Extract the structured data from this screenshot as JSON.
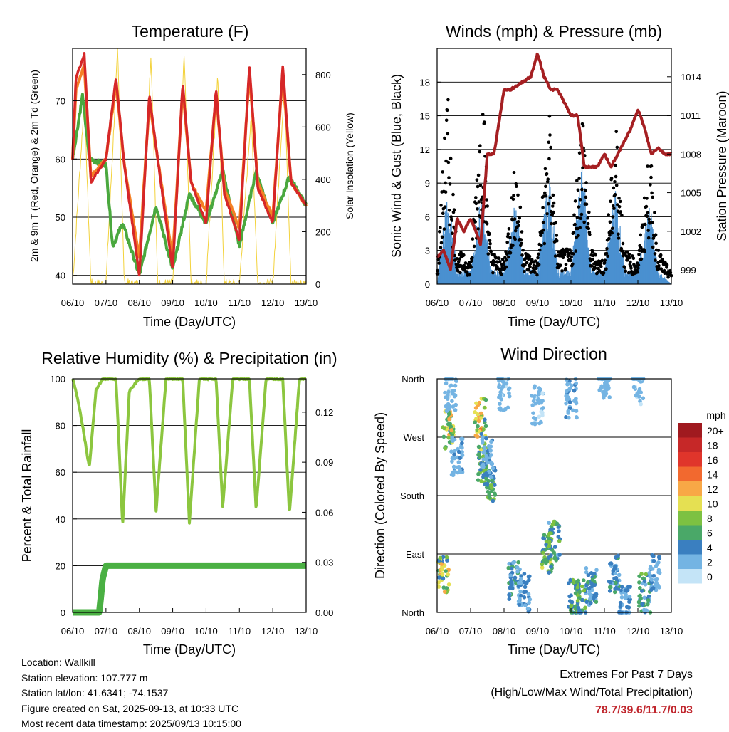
{
  "x_ticks": [
    "06/10",
    "07/10",
    "08/10",
    "09/10",
    "10/10",
    "11/10",
    "12/10",
    "13/10"
  ],
  "time_axis_label": "Time (Day/UTC)",
  "panels": {
    "temperature": {
      "title": "Temperature (F)",
      "ylabel_left": "2m & 9m T (Red, Orange) & 2m Td (Green)",
      "ylabel_right": "Solar Insolation (Yellow)",
      "left_ticks": [
        40,
        50,
        60,
        70
      ],
      "right_ticks": [
        0,
        200,
        400,
        600,
        800
      ]
    },
    "winds": {
      "title": "Winds (mph) & Pressure (mb)",
      "ylabel_left": "Sonic Wind & Gust (Blue, Black)",
      "ylabel_right": "Station Pressure (Maroon)",
      "left_ticks": [
        0,
        3,
        6,
        9,
        12,
        15,
        18
      ],
      "right_ticks": [
        999,
        1002,
        1005,
        1008,
        1011,
        1014
      ]
    },
    "humidity": {
      "title": "Relative Humidity (%) & Precipitation (in)",
      "ylabel_left": "Percent & Total Rainfall",
      "left_ticks": [
        0,
        20,
        40,
        60,
        80,
        100
      ],
      "right_ticks": [
        "0.00",
        "0.03",
        "0.06",
        "0.09",
        "0.12"
      ]
    },
    "direction": {
      "title": "Wind Direction",
      "ylabel_left": "Direction (Colored By Speed)",
      "dir_ticks": [
        "North",
        "East",
        "South",
        "West",
        "North"
      ],
      "legend_title": "mph",
      "legend_labels": [
        "20+",
        "18",
        "16",
        "14",
        "12",
        "10",
        "8",
        "6",
        "4",
        "2",
        "0"
      ],
      "legend_colors": [
        "#a01a1f",
        "#c62828",
        "#e0352b",
        "#f2692f",
        "#f8a846",
        "#e5e052",
        "#7dc142",
        "#4aa868",
        "#3a7fc0",
        "#74b4e3",
        "#c4e4f7"
      ]
    }
  },
  "chart_data": [
    {
      "type": "line",
      "title": "Temperature (F)",
      "xlabel": "Time (Day/UTC)",
      "x_categories": [
        "06/10",
        "07/10",
        "08/10",
        "09/10",
        "10/10",
        "11/10",
        "12/10",
        "13/10"
      ],
      "ylim": [
        38.5,
        79
      ],
      "y2lim": [
        0,
        900
      ],
      "series": [
        {
          "name": "2m T",
          "color": "#d62728",
          "x": [
            0,
            0.1,
            0.35,
            0.55,
            1,
            1.3,
            1.55,
            2,
            2.3,
            2.55,
            3,
            3.3,
            3.55,
            4,
            4.3,
            4.55,
            5,
            5.3,
            5.55,
            6,
            6.3,
            6.55,
            7
          ],
          "y": [
            60,
            74,
            78,
            56,
            60,
            74,
            59,
            40,
            71,
            60,
            41,
            73,
            56,
            49,
            72,
            54,
            46,
            76,
            55,
            49,
            76,
            56,
            52
          ]
        },
        {
          "name": "9m T",
          "color": "#f58025",
          "x": [
            0,
            0.1,
            0.35,
            0.55,
            1,
            1.3,
            1.55,
            2,
            2.3,
            2.55,
            3,
            3.3,
            3.55,
            4,
            4.3,
            4.55,
            5,
            5.3,
            5.55,
            6,
            6.3,
            6.55,
            7
          ],
          "y": [
            60,
            72,
            76,
            57,
            60,
            73,
            59,
            43,
            70,
            60,
            43,
            72,
            56,
            51,
            71,
            55,
            48,
            75,
            56,
            50,
            75,
            56,
            52
          ]
        },
        {
          "name": "2m Td",
          "color": "#4aa83e",
          "x": [
            0,
            0.3,
            0.5,
            1,
            1.2,
            1.5,
            2,
            2.5,
            3,
            3.5,
            4,
            4.5,
            5,
            5.5,
            6,
            6.5,
            7
          ],
          "y": [
            60,
            71,
            60,
            59,
            45,
            49,
            40,
            52,
            41,
            54,
            49,
            58,
            45,
            58,
            49,
            57,
            52
          ]
        },
        {
          "name": "Solar Insolation",
          "color": "#f3d23b",
          "axis": "right",
          "x": [
            0,
            0.35,
            0.55,
            1,
            1.35,
            1.55,
            2,
            2.35,
            2.55,
            3,
            3.35,
            3.55,
            4,
            4.35,
            4.55,
            5,
            5.35,
            5.55,
            6,
            6.35,
            6.55,
            7
          ],
          "y": [
            0,
            700,
            0,
            0,
            890,
            0,
            0,
            880,
            0,
            0,
            880,
            0,
            0,
            800,
            0,
            0,
            650,
            0,
            0,
            770,
            0,
            0
          ]
        }
      ]
    },
    {
      "type": "line",
      "title": "Winds (mph) & Pressure (mb)",
      "xlabel": "Time (Day/UTC)",
      "x_categories": [
        "06/10",
        "07/10",
        "08/10",
        "09/10",
        "10/10",
        "11/10",
        "12/10",
        "13/10"
      ],
      "ylim": [
        0,
        21
      ],
      "y2lim": [
        997.9,
        1016.2
      ],
      "series": [
        {
          "name": "Sonic Wind",
          "color": "#4a90d0",
          "x": [
            0,
            0.3,
            0.6,
            1,
            1.35,
            1.6,
            2,
            2.35,
            2.6,
            3,
            3.35,
            3.6,
            4,
            4.35,
            4.6,
            5,
            5.35,
            5.6,
            6,
            6.35,
            6.6,
            7
          ],
          "y": [
            0,
            7,
            1,
            1,
            7,
            1,
            1,
            6,
            1,
            1,
            8,
            1,
            1,
            9,
            1,
            1,
            7,
            1,
            1,
            6,
            1,
            0
          ]
        },
        {
          "name": "Gust",
          "color": "#000000",
          "x": [
            0,
            0.3,
            0.6,
            1,
            1.35,
            1.6,
            2,
            2.35,
            2.6,
            3,
            3.35,
            3.6,
            4,
            4.35,
            4.6,
            5,
            5.35,
            5.6,
            6,
            6.35,
            6.6,
            7
          ],
          "y": [
            1,
            17,
            3,
            2,
            18,
            3,
            2,
            11,
            3,
            2,
            15,
            3,
            3,
            16,
            3,
            2,
            14,
            3,
            2,
            12,
            3,
            1
          ]
        },
        {
          "name": "Station Pressure",
          "color": "#a51f22",
          "axis": "right",
          "x": [
            0,
            0.2,
            0.4,
            0.6,
            0.8,
            1,
            1.3,
            1.5,
            1.7,
            2,
            2.2,
            2.5,
            2.8,
            3,
            3.2,
            3.4,
            3.6,
            3.8,
            4,
            4.2,
            4.4,
            4.6,
            4.8,
            5,
            5.2,
            5.4,
            5.6,
            5.8,
            6,
            6.2,
            6.4,
            6.6,
            6.8,
            7
          ],
          "y": [
            1000,
            1000.5,
            999,
            1003,
            1002,
            1003,
            1001,
            1008,
            1008,
            1013,
            1013,
            1013.5,
            1014,
            1015.8,
            1014,
            1013,
            1013,
            1012,
            1011,
            1011,
            1007,
            1007,
            1007,
            1008,
            1007,
            1008,
            1009,
            1010,
            1011.5,
            1010,
            1008,
            1008.5,
            1008,
            1008
          ]
        }
      ]
    },
    {
      "type": "line",
      "title": "Relative Humidity (%) & Precipitation (in)",
      "xlabel": "Time (Day/UTC)",
      "x_categories": [
        "06/10",
        "07/10",
        "08/10",
        "09/10",
        "10/10",
        "11/10",
        "12/10",
        "13/10"
      ],
      "ylim": [
        0,
        100
      ],
      "y2lim": [
        0,
        0.14
      ],
      "series": [
        {
          "name": "Relative Humidity",
          "color": "#8cc63f",
          "x": [
            0,
            0.1,
            0.3,
            0.5,
            0.7,
            0.9,
            1.3,
            1.5,
            1.7,
            2,
            2.3,
            2.5,
            2.8,
            3,
            3.3,
            3.5,
            3.8,
            4,
            4.3,
            4.5,
            4.8,
            5,
            5.3,
            5.5,
            5.8,
            6,
            6.3,
            6.5,
            6.8,
            7
          ],
          "y": [
            100,
            95,
            80,
            62,
            95,
            100,
            100,
            37,
            95,
            100,
            100,
            43,
            100,
            100,
            100,
            38,
            100,
            100,
            100,
            45,
            100,
            100,
            100,
            44,
            100,
            100,
            100,
            42,
            100,
            100
          ]
        },
        {
          "name": "Total Rainfall",
          "color": "#4ab043",
          "axis": "right",
          "x": [
            0,
            0.8,
            0.9,
            1,
            7
          ],
          "y": [
            0,
            0,
            0.02,
            0.028,
            0.028
          ]
        }
      ]
    },
    {
      "type": "scatter",
      "title": "Wind Direction",
      "xlabel": "Time (Day/UTC)",
      "x_categories": [
        "06/10",
        "07/10",
        "08/10",
        "09/10",
        "10/10",
        "11/10",
        "12/10",
        "13/10"
      ],
      "y_categories": [
        "North",
        "East",
        "South",
        "West",
        "North"
      ],
      "ylim": [
        0,
        360
      ],
      "color_scale": {
        "title": "mph",
        "labels": [
          "0",
          "2",
          "4",
          "6",
          "8",
          "10",
          "12",
          "14",
          "16",
          "18",
          "20+"
        ]
      },
      "series": [
        {
          "name": "Direction",
          "x": [
            0.2,
            0.35,
            1.3,
            1.4,
            1.6,
            2.3,
            2.6,
            3.3,
            3.5,
            4.1,
            4.3,
            4.6,
            5.3,
            5.6,
            6.2,
            6.5,
            0.4,
            0.6,
            1.5,
            2.0,
            3.0,
            4.0,
            5.0,
            6.0
          ],
          "y": [
            60,
            280,
            300,
            230,
            200,
            50,
            30,
            90,
            110,
            20,
            20,
            40,
            60,
            10,
            30,
            60,
            340,
            240,
            240,
            340,
            320,
            330,
            360,
            350
          ],
          "speed": [
            10,
            11,
            11,
            8,
            7,
            5,
            4,
            8,
            7,
            8,
            7,
            5,
            5,
            4,
            6,
            3,
            2,
            3,
            3,
            2,
            2,
            3,
            2,
            2
          ]
        }
      ]
    }
  ],
  "info": {
    "location": "Location: Wallkill",
    "elevation": "Station elevation: 107.777 m",
    "latlon": "Station lat/lon: 41.6341; -74.1537",
    "created": "Figure created on Sat, 2025-09-13, at 10:33 UTC",
    "recent": "Most recent data timestamp: 2025/09/13 10:15:00"
  },
  "extremes": {
    "line1": "Extremes For Past 7 Days",
    "line2": "(High/Low/Max Wind/Total Precipitation)",
    "values": "78.7/39.6/11.7/0.03"
  }
}
